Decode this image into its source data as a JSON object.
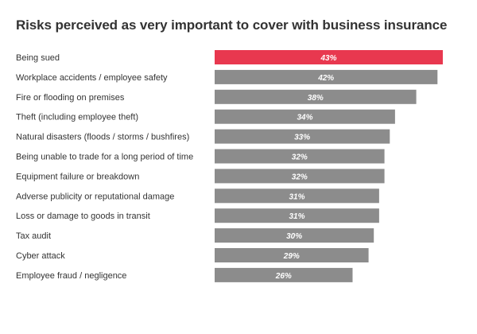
{
  "chart_data": {
    "type": "bar",
    "orientation": "horizontal",
    "title": "Risks perceived as very important to cover with business insurance",
    "xlabel": "",
    "ylabel": "",
    "categories": [
      "Being sued",
      "Workplace accidents / employee safety",
      "Fire or flooding on premises",
      "Theft (including employee theft)",
      "Natural disasters (floods / storms / bushfires)",
      "Being unable to trade for a long period of time",
      "Equipment failure or breakdown",
      "Adverse publicity or reputational damage",
      "Loss or damage to goods in transit",
      "Tax audit",
      "Cyber attack",
      "Employee fraud / negligence"
    ],
    "values": [
      43,
      42,
      38,
      34,
      33,
      32,
      32,
      31,
      31,
      30,
      29,
      26
    ],
    "value_labels": [
      "43%",
      "42%",
      "38%",
      "34%",
      "33%",
      "32%",
      "32%",
      "31%",
      "31%",
      "30%",
      "29%",
      "26%"
    ],
    "unit": "%",
    "xlim": [
      0,
      43
    ],
    "grid": false,
    "legend": "none",
    "highlight_index": 0,
    "colors": {
      "highlight": "#e8384f",
      "default": "#8c8c8c",
      "label_text": "#ffffff"
    }
  }
}
